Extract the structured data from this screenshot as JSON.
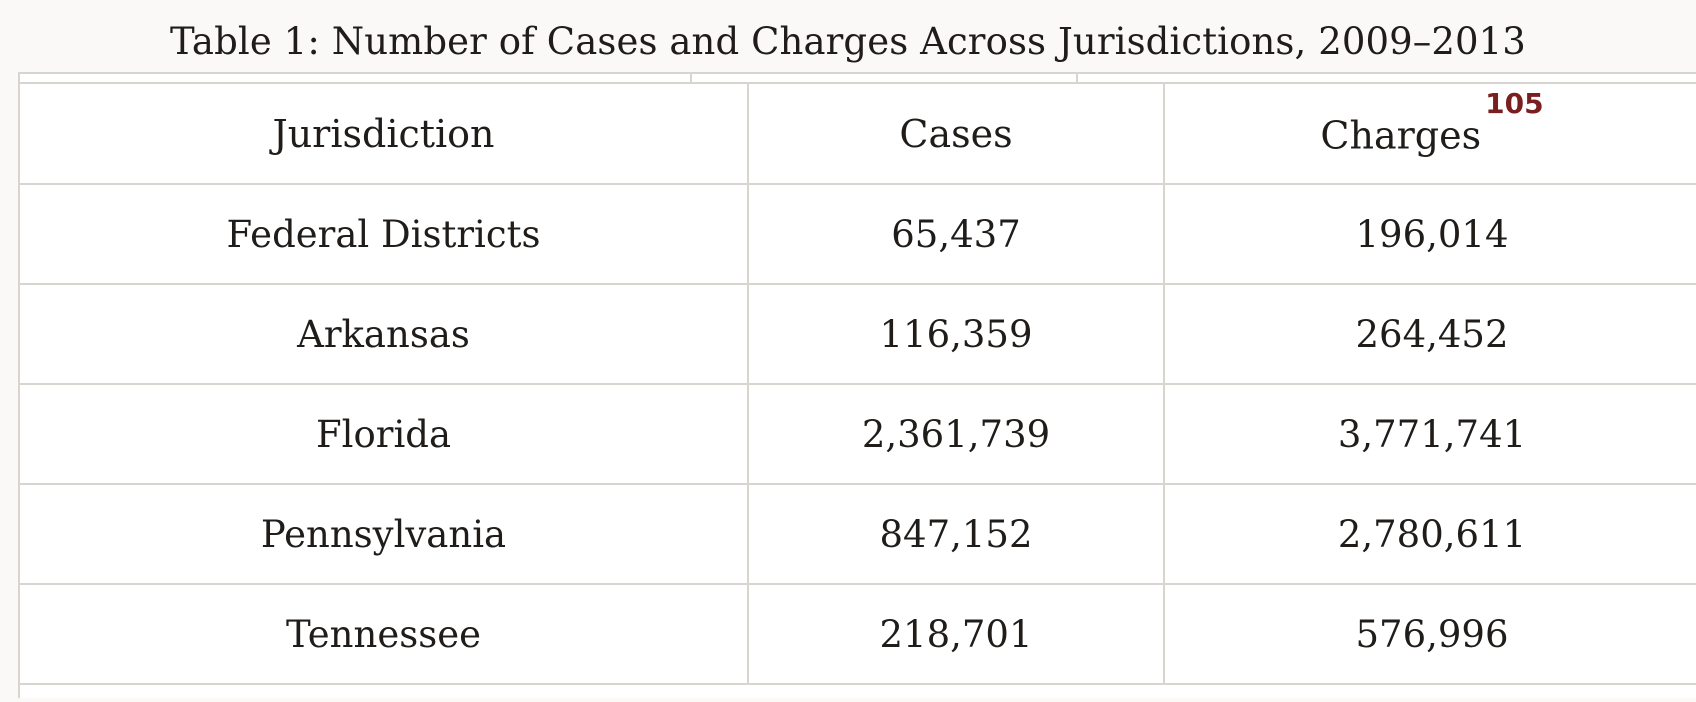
{
  "caption": "Table 1: Number of Cases and Charges Across Jurisdictions, 2009–2013",
  "table": {
    "headers": {
      "jurisdiction": "Jurisdiction",
      "cases": "Cases",
      "charges": "Charges",
      "charges_footnote": "105"
    },
    "rows": [
      {
        "jurisdiction": "Federal Districts",
        "cases": "65,437",
        "charges": "196,014"
      },
      {
        "jurisdiction": "Arkansas",
        "cases": "116,359",
        "charges": "264,452"
      },
      {
        "jurisdiction": "Florida",
        "cases": "2,361,739",
        "charges": "3,771,741"
      },
      {
        "jurisdiction": "Pennsylvania",
        "cases": "847,152",
        "charges": "2,780,611"
      },
      {
        "jurisdiction": "Tennessee",
        "cases": "218,701",
        "charges": "576,996"
      }
    ]
  },
  "colors": {
    "footnote": "#7a1f1f",
    "border": "#d8d4cf",
    "text": "#1f1c19",
    "page_background": "#faf9f7"
  }
}
